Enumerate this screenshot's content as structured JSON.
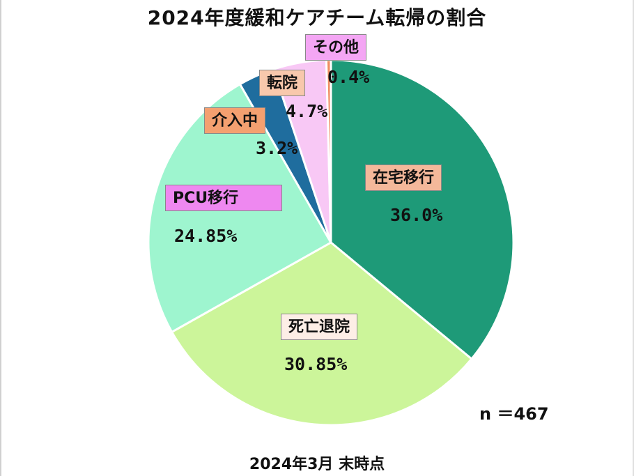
{
  "chart_data": {
    "type": "pie",
    "title": "2024年度緩和ケアチーム転帰の割合",
    "slices": [
      {
        "label": "在宅移行",
        "value": 36.0,
        "display": "36.0%",
        "color": "#1e9a78",
        "label_bg": "#f4b89a"
      },
      {
        "label": "死亡退院",
        "value": 30.85,
        "display": "30.85%",
        "color": "#ccf59a",
        "label_bg": "#fdeee6"
      },
      {
        "label": "PCU移行",
        "value": 24.85,
        "display": "24.85%",
        "color": "#9ef5cf",
        "label_bg": "#ee88f0"
      },
      {
        "label": "介入中",
        "value": 3.2,
        "display": "3.2%",
        "color": "#1f6d9e",
        "label_bg": "#f4a070"
      },
      {
        "label": "転院",
        "value": 4.7,
        "display": "4.7%",
        "color": "#f8c8f5",
        "label_bg": "#f8c8ac"
      },
      {
        "label": "その他",
        "value": 0.4,
        "display": "0.4%",
        "color": "#f08c60",
        "label_bg": "#f4a6f4"
      }
    ],
    "n_label": "n ＝467",
    "date_note": "2024年3月 末時点"
  }
}
